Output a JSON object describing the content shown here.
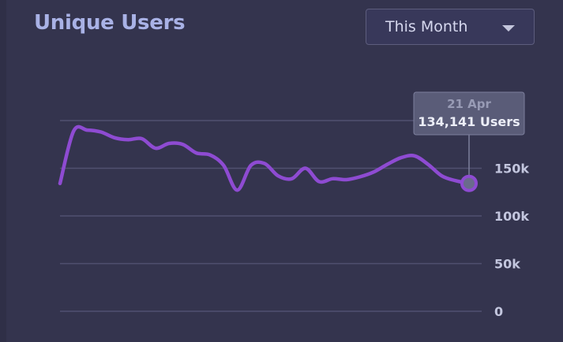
{
  "header": {
    "title": "Unique Users"
  },
  "period_select": {
    "selected": "This Month",
    "icon": "caret-down-icon"
  },
  "tooltip": {
    "date": "21 Apr",
    "value": "134,141 Users"
  },
  "colors": {
    "background": "#34344e",
    "line": "#8e4bd2",
    "grid": "#505070",
    "title": "#a9b2e6",
    "tooltip_bg": "#5d5f7c"
  },
  "chart_data": {
    "type": "line",
    "grid": true,
    "y_ticks": [
      {
        "value": 200000,
        "label": ""
      },
      {
        "value": 150000,
        "label": "150k"
      },
      {
        "value": 100000,
        "label": "100k"
      },
      {
        "value": 50000,
        "label": "50k"
      },
      {
        "value": 0,
        "label": "0"
      }
    ],
    "ylim": [
      0,
      200000
    ],
    "series": [
      {
        "values": [
          134000,
          189000,
          190000,
          188000,
          182000,
          180000,
          181000,
          171000,
          176000,
          175000,
          166000,
          164000,
          153000,
          127000,
          153000,
          155000,
          142000,
          139000,
          150000,
          136000,
          139000,
          138000,
          141000,
          146000,
          154000,
          161000,
          163000,
          154000,
          142000,
          137000,
          134141
        ]
      }
    ],
    "highlight_index": 30
  }
}
